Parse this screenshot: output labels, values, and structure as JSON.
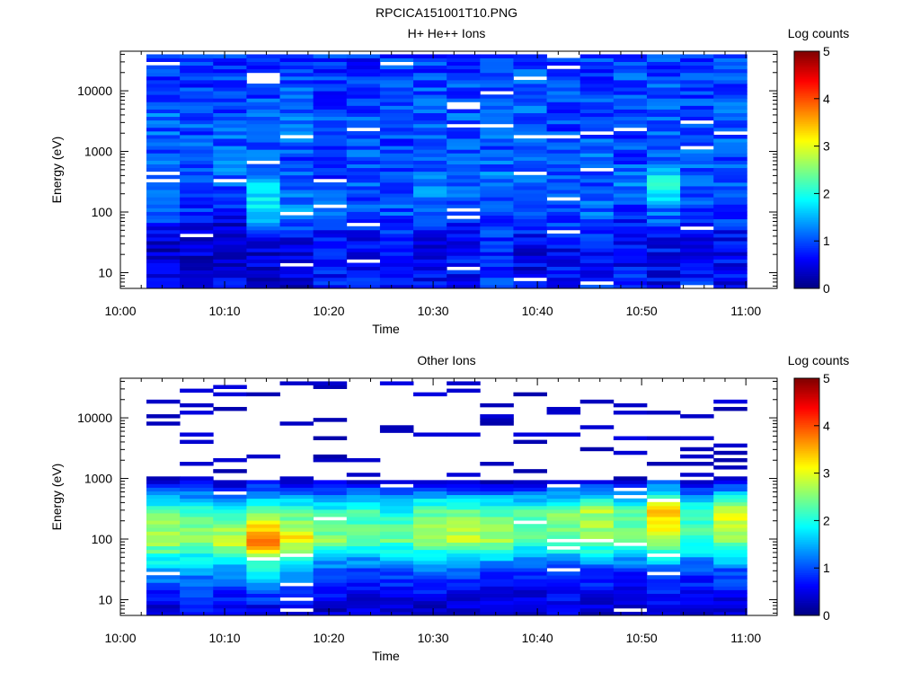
{
  "figure_title": "RPCICA151001T10.PNG",
  "colors": {
    "jet": [
      "#00007f",
      "#0000ff",
      "#007fff",
      "#00ffff",
      "#7fff7f",
      "#ffff00",
      "#ff7f00",
      "#ff0000",
      "#7f0000"
    ],
    "axis": "#000000",
    "background": "#ffffff"
  },
  "chart_data": [
    {
      "type": "heatmap",
      "title": "H+ He++ Ions",
      "xlabel": "Time",
      "ylabel": "Energy (eV)",
      "x_tick_labels": [
        "10:00",
        "10:10",
        "10:20",
        "10:30",
        "10:40",
        "10:50",
        "11:00"
      ],
      "x_tick_minutes": [
        0,
        10,
        20,
        30,
        40,
        50,
        60
      ],
      "xlim_minutes": [
        0,
        63
      ],
      "y_scale": "log",
      "ylim": [
        5.5,
        45000
      ],
      "y_tick_labels": [
        "10",
        "100",
        "1000",
        "10000"
      ],
      "y_tick_values": [
        10,
        100,
        1000,
        10000
      ],
      "energy_range_eV": [
        5.5,
        40000
      ],
      "energy_bins": 64,
      "time_bins_start_minutes": [
        2.5,
        5.7,
        8.9,
        12.1,
        15.3,
        18.5,
        21.7,
        24.9,
        28.1,
        31.3,
        34.5,
        37.7,
        40.9,
        44.1,
        47.3,
        50.5,
        53.7,
        56.9
      ],
      "time_bin_width_minutes": 3.2,
      "estimated_log_counts_by_time_bin": {
        "energy_eV": [
          8,
          30,
          100,
          300,
          1000,
          3000,
          10000,
          30000
        ],
        "values": [
          [
            0.6,
            0.3,
            1.0,
            1.2,
            1.1,
            1.1,
            1.0,
            0.9
          ],
          [
            0.3,
            0.4,
            0.8,
            1.0,
            1.0,
            1.0,
            0.9,
            0.9
          ],
          [
            0.6,
            0.3,
            0.6,
            1.1,
            1.1,
            1.0,
            1.0,
            0.9
          ],
          [
            0.5,
            0.4,
            1.8,
            1.5,
            1.0,
            1.0,
            1.0,
            0.9
          ],
          [
            0.4,
            0.5,
            1.3,
            1.0,
            1.0,
            1.1,
            1.0,
            0.9
          ],
          [
            0.7,
            0.6,
            1.0,
            0.9,
            1.0,
            1.0,
            0.9,
            0.9
          ],
          [
            0.8,
            0.6,
            0.9,
            1.0,
            1.0,
            1.0,
            1.0,
            0.8
          ],
          [
            0.5,
            0.6,
            1.0,
            1.0,
            1.0,
            0.9,
            1.0,
            0.9
          ],
          [
            0.6,
            0.6,
            1.1,
            1.2,
            0.9,
            1.0,
            1.0,
            0.9
          ],
          [
            0.7,
            0.6,
            0.9,
            1.1,
            1.0,
            1.1,
            1.0,
            0.9
          ],
          [
            0.9,
            0.7,
            1.0,
            1.2,
            1.0,
            1.0,
            1.0,
            0.9
          ],
          [
            0.5,
            0.6,
            0.8,
            1.1,
            1.1,
            1.0,
            1.1,
            0.9
          ],
          [
            0.7,
            0.6,
            1.0,
            1.0,
            1.0,
            0.9,
            1.0,
            0.9
          ],
          [
            0.8,
            0.6,
            1.1,
            1.0,
            1.1,
            1.0,
            1.0,
            0.9
          ],
          [
            0.7,
            0.6,
            0.8,
            1.2,
            0.9,
            1.0,
            1.0,
            0.9
          ],
          [
            0.6,
            0.6,
            1.2,
            2.0,
            1.0,
            1.1,
            1.0,
            0.9
          ],
          [
            0.7,
            0.6,
            1.0,
            1.1,
            1.0,
            1.0,
            1.0,
            0.9
          ],
          [
            0.6,
            0.6,
            0.9,
            1.0,
            1.0,
            1.0,
            1.0,
            0.9
          ]
        ]
      },
      "colorbar": {
        "label": "Log counts",
        "range": [
          0,
          5
        ],
        "tick_labels": [
          "0",
          "1",
          "2",
          "3",
          "4",
          "5"
        ],
        "colormap": "jet"
      }
    },
    {
      "type": "heatmap",
      "title": "Other Ions",
      "xlabel": "Time",
      "ylabel": "Energy (eV)",
      "x_tick_labels": [
        "10:00",
        "10:10",
        "10:20",
        "10:30",
        "10:40",
        "10:50",
        "11:00"
      ],
      "x_tick_minutes": [
        0,
        10,
        20,
        30,
        40,
        50,
        60
      ],
      "xlim_minutes": [
        0,
        63
      ],
      "y_scale": "log",
      "ylim": [
        5.5,
        45000
      ],
      "y_tick_labels": [
        "10",
        "100",
        "1000",
        "10000"
      ],
      "y_tick_values": [
        10,
        100,
        1000,
        10000
      ],
      "energy_range_eV": [
        5.5,
        40000
      ],
      "energy_bins": 64,
      "time_bins_start_minutes": [
        2.5,
        5.7,
        8.9,
        12.1,
        15.3,
        18.5,
        21.7,
        24.9,
        28.1,
        31.3,
        34.5,
        37.7,
        40.9,
        44.1,
        47.3,
        50.5,
        53.7,
        56.9
      ],
      "time_bin_width_minutes": 3.2,
      "estimated_log_counts_by_time_bin": {
        "energy_eV": [
          8,
          30,
          100,
          300,
          1000,
          3000,
          10000,
          30000
        ],
        "values": [
          [
            0.4,
            1.4,
            2.8,
            2.3,
            0.3,
            0.0,
            0.0,
            0.0
          ],
          [
            0.6,
            1.4,
            2.5,
            2.2,
            0.3,
            0.0,
            0.0,
            0.0
          ],
          [
            0.5,
            1.3,
            3.0,
            1.8,
            0.2,
            0.0,
            0.0,
            0.0
          ],
          [
            0.6,
            1.8,
            3.9,
            2.4,
            0.3,
            0.0,
            0.0,
            0.0
          ],
          [
            0.5,
            1.6,
            3.2,
            2.2,
            0.2,
            0.0,
            0.0,
            0.0
          ],
          [
            0.4,
            1.0,
            2.6,
            2.0,
            0.2,
            0.0,
            0.0,
            0.0
          ],
          [
            0.4,
            0.9,
            2.3,
            2.2,
            0.3,
            0.0,
            0.0,
            0.0
          ],
          [
            0.4,
            1.0,
            2.4,
            1.9,
            0.2,
            0.0,
            0.0,
            0.0
          ],
          [
            0.4,
            1.1,
            2.6,
            2.4,
            0.2,
            0.0,
            0.0,
            0.0
          ],
          [
            0.4,
            1.0,
            2.8,
            2.4,
            0.2,
            0.0,
            0.0,
            0.0
          ],
          [
            0.4,
            0.9,
            2.7,
            2.3,
            0.2,
            0.0,
            0.0,
            0.0
          ],
          [
            0.4,
            0.8,
            2.3,
            2.2,
            0.2,
            0.0,
            0.0,
            0.0
          ],
          [
            0.5,
            0.9,
            2.4,
            2.5,
            0.3,
            0.0,
            0.0,
            0.0
          ],
          [
            0.4,
            0.9,
            2.6,
            2.7,
            0.4,
            0.0,
            0.0,
            0.0
          ],
          [
            0.4,
            0.8,
            2.4,
            2.4,
            0.3,
            0.0,
            0.0,
            0.0
          ],
          [
            0.5,
            1.1,
            2.9,
            3.4,
            0.6,
            0.0,
            0.0,
            0.0
          ],
          [
            0.4,
            0.9,
            2.2,
            2.2,
            0.3,
            0.0,
            0.0,
            0.0
          ],
          [
            0.5,
            1.0,
            2.7,
            3.0,
            0.4,
            0.0,
            0.0,
            0.0
          ]
        ]
      },
      "colorbar": {
        "label": "Log counts",
        "range": [
          0,
          5
        ],
        "tick_labels": [
          "0",
          "1",
          "2",
          "3",
          "4",
          "5"
        ],
        "colormap": "jet"
      }
    }
  ]
}
